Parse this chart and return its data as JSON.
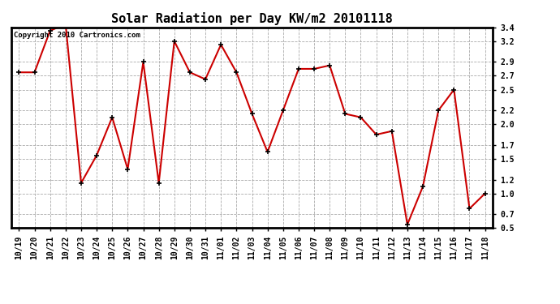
{
  "title": "Solar Radiation per Day KW/m2 20101118",
  "copyright_text": "Copyright 2010 Cartronics.com",
  "x_labels": [
    "10/19",
    "10/20",
    "10/21",
    "10/22",
    "10/23",
    "10/24",
    "10/25",
    "10/26",
    "10/27",
    "10/28",
    "10/29",
    "10/30",
    "10/31",
    "11/01",
    "11/02",
    "11/03",
    "11/04",
    "11/05",
    "11/06",
    "11/07",
    "11/08",
    "11/09",
    "11/10",
    "11/11",
    "11/12",
    "11/13",
    "11/14",
    "11/15",
    "11/16",
    "11/17",
    "11/18"
  ],
  "y_values": [
    2.75,
    2.75,
    3.35,
    3.45,
    1.15,
    1.55,
    2.1,
    1.35,
    2.9,
    1.15,
    3.2,
    2.75,
    2.65,
    3.15,
    2.75,
    2.15,
    1.6,
    2.2,
    2.8,
    2.8,
    2.85,
    2.15,
    2.1,
    1.85,
    1.9,
    0.55,
    1.1,
    2.2,
    2.5,
    0.78,
    1.0
  ],
  "line_color": "#cc0000",
  "marker": "+",
  "marker_size": 5,
  "marker_color": "#000000",
  "ylim": [
    0.5,
    3.4
  ],
  "yticks": [
    0.5,
    0.7,
    1.0,
    1.2,
    1.5,
    1.7,
    2.0,
    2.2,
    2.5,
    2.7,
    2.9,
    3.2,
    3.4
  ],
  "grid_color": "#aaaaaa",
  "grid_style": "--",
  "background_color": "#ffffff",
  "title_fontsize": 11,
  "copyright_fontsize": 6.5,
  "tick_fontsize": 7,
  "border_color": "#000000",
  "border_width": 2.0
}
